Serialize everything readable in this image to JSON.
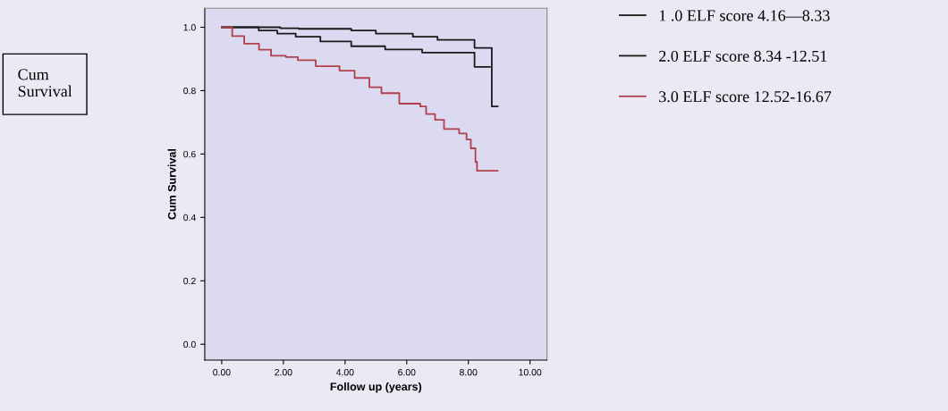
{
  "chart_data": {
    "type": "step",
    "xlabel": "Follow up (years)",
    "ylabel": "Cum Survival",
    "annotations": [
      "Cum\nSurvival"
    ],
    "xlim": [
      -0.55,
      10.55
    ],
    "ylim": [
      -0.05,
      1.06
    ],
    "xticks": [
      {
        "value": 0,
        "label": "0.00"
      },
      {
        "value": 2,
        "label": "2.00"
      },
      {
        "value": 4,
        "label": "4.00"
      },
      {
        "value": 6,
        "label": "6.00"
      },
      {
        "value": 8,
        "label": "8.00"
      },
      {
        "value": 10,
        "label": "10.00"
      }
    ],
    "yticks": [
      {
        "value": 0,
        "label": "0.0"
      },
      {
        "value": 0.2,
        "label": "0.2"
      },
      {
        "value": 0.4,
        "label": "0.4"
      },
      {
        "value": 0.6,
        "label": "0.6"
      },
      {
        "value": 0.8,
        "label": "0.8"
      },
      {
        "value": 1,
        "label": "1.0"
      }
    ],
    "legend": "right",
    "grid": false,
    "series": [
      {
        "name": "1 .0 ELF score 4.16—8.33",
        "color": "#1a1a1a",
        "x": [
          0,
          1.9,
          2.5,
          4.2,
          5.0,
          6.2,
          7.0,
          8.2,
          8.76,
          8.95
        ],
        "values": [
          1.0,
          0.997,
          0.995,
          0.99,
          0.98,
          0.97,
          0.96,
          0.935,
          0.75,
          0.75
        ]
      },
      {
        "name": "2.0 ELF score 8.34 -12.51",
        "color": "#1a1a1a",
        "x": [
          0,
          1.2,
          1.8,
          2.4,
          3.2,
          4.2,
          5.3,
          6.5,
          8.2,
          8.7
        ],
        "values": [
          1.0,
          0.99,
          0.98,
          0.97,
          0.955,
          0.94,
          0.93,
          0.92,
          0.875,
          0.875
        ]
      },
      {
        "name": "3.0 ELF score 12.52-16.67",
        "color": "#b0404a",
        "x": [
          0,
          0.34,
          0.73,
          1.21,
          1.6,
          2.08,
          2.47,
          3.05,
          3.82,
          4.31,
          4.79,
          5.18,
          5.76,
          6.44,
          6.63,
          6.92,
          7.21,
          7.7,
          7.94,
          8.08,
          8.23,
          8.28,
          8.95
        ],
        "values": [
          1.0,
          0.972,
          0.948,
          0.929,
          0.91,
          0.906,
          0.896,
          0.877,
          0.863,
          0.84,
          0.811,
          0.792,
          0.759,
          0.75,
          0.726,
          0.708,
          0.679,
          0.665,
          0.646,
          0.618,
          0.575,
          0.547,
          0.547
        ]
      }
    ]
  }
}
